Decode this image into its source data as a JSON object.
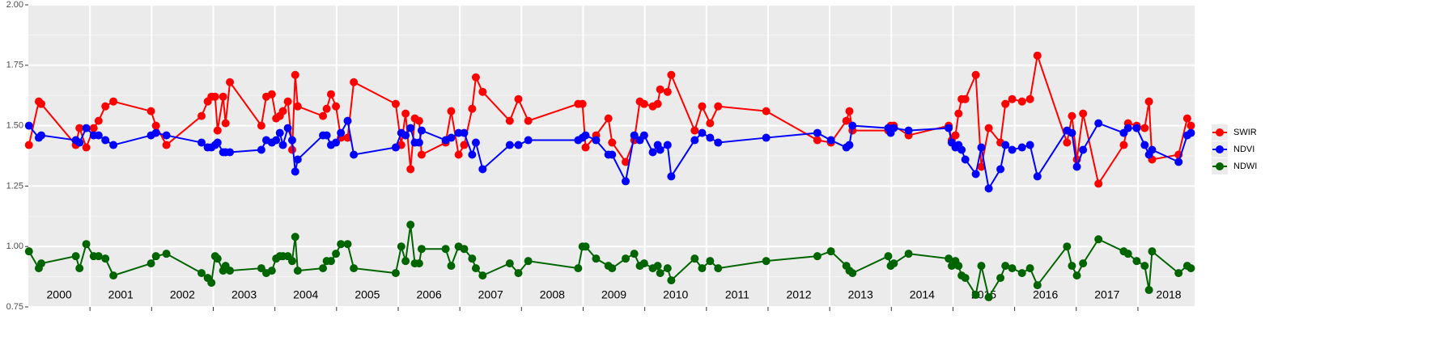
{
  "chart_data": {
    "type": "line",
    "x": [
      2000.01,
      2000.17,
      2000.21,
      2000.77,
      2000.83,
      2000.94,
      2001.06,
      2001.14,
      2001.25,
      2001.38,
      2001.99,
      2002.07,
      2002.24,
      2002.81,
      2002.91,
      2002.97,
      2003.03,
      2003.07,
      2003.16,
      2003.2,
      2003.27,
      2003.78,
      2003.86,
      2003.95,
      2004.02,
      2004.08,
      2004.13,
      2004.21,
      2004.28,
      2004.33,
      2004.37,
      2004.78,
      2004.84,
      2004.91,
      2004.99,
      2005.07,
      2005.18,
      2005.28,
      2005.96,
      2006.05,
      2006.12,
      2006.2,
      2006.27,
      2006.34,
      2006.38,
      2006.77,
      2006.86,
      2006.98,
      2007.07,
      2007.2,
      2007.26,
      2007.37,
      2007.81,
      2007.95,
      2008.11,
      2008.92,
      2008.99,
      2009.04,
      2009.21,
      2009.41,
      2009.47,
      2009.69,
      2009.83,
      2009.92,
      2009.99,
      2010.13,
      2010.21,
      2010.25,
      2010.37,
      2010.43,
      2010.81,
      2010.93,
      2011.06,
      2011.19,
      2011.97,
      2012.8,
      2013.02,
      2013.27,
      2013.32,
      2013.37,
      2013.95,
      2013.99,
      2014.04,
      2014.28,
      2014.93,
      2014.98,
      2015.04,
      2015.09,
      2015.14,
      2015.2,
      2015.37,
      2015.46,
      2015.58,
      2015.77,
      2015.85,
      2015.96,
      2016.12,
      2016.25,
      2016.37,
      2016.85,
      2016.93,
      2017.01,
      2017.11,
      2017.36,
      2017.77,
      2017.84,
      2017.98,
      2018.11,
      2018.18,
      2018.23,
      2018.66,
      2018.8,
      2018.86
    ],
    "series": [
      {
        "name": "SWIR",
        "color": "#ff0000",
        "values": [
          1.42,
          1.6,
          1.59,
          1.42,
          1.49,
          1.41,
          1.49,
          1.52,
          1.58,
          1.6,
          1.56,
          1.5,
          1.42,
          1.54,
          1.6,
          1.62,
          1.62,
          1.48,
          1.62,
          1.51,
          1.68,
          1.5,
          1.62,
          1.63,
          1.53,
          1.54,
          1.56,
          1.6,
          1.4,
          1.71,
          1.58,
          1.54,
          1.57,
          1.63,
          1.58,
          1.45,
          1.45,
          1.68,
          1.59,
          1.42,
          1.55,
          1.32,
          1.53,
          1.52,
          1.38,
          1.43,
          1.56,
          1.38,
          1.42,
          1.57,
          1.7,
          1.64,
          1.52,
          1.61,
          1.52,
          1.59,
          1.59,
          1.41,
          1.46,
          1.53,
          1.43,
          1.35,
          1.44,
          1.6,
          1.59,
          1.58,
          1.59,
          1.65,
          1.64,
          1.71,
          1.48,
          1.58,
          1.51,
          1.58,
          1.56,
          1.44,
          1.43,
          1.52,
          1.56,
          1.48,
          1.48,
          1.5,
          1.5,
          1.46,
          1.5,
          1.44,
          1.46,
          1.55,
          1.61,
          1.61,
          1.71,
          1.33,
          1.49,
          1.43,
          1.59,
          1.61,
          1.6,
          1.61,
          1.79,
          1.43,
          1.54,
          1.36,
          1.55,
          1.26,
          1.42,
          1.51,
          1.5,
          1.49,
          1.6,
          1.36,
          1.38,
          1.53,
          1.5
        ]
      },
      {
        "name": "NDVI",
        "color": "#0000ff",
        "values": [
          1.5,
          1.45,
          1.46,
          1.44,
          1.43,
          1.49,
          1.46,
          1.46,
          1.44,
          1.42,
          1.46,
          1.47,
          1.46,
          1.43,
          1.41,
          1.41,
          1.42,
          1.43,
          1.39,
          1.39,
          1.39,
          1.4,
          1.44,
          1.43,
          1.44,
          1.47,
          1.42,
          1.49,
          1.44,
          1.31,
          1.36,
          1.46,
          1.46,
          1.42,
          1.43,
          1.47,
          1.52,
          1.38,
          1.41,
          1.47,
          1.46,
          1.49,
          1.43,
          1.43,
          1.48,
          1.44,
          1.45,
          1.47,
          1.47,
          1.38,
          1.43,
          1.32,
          1.42,
          1.42,
          1.44,
          1.44,
          1.45,
          1.46,
          1.44,
          1.38,
          1.38,
          1.27,
          1.46,
          1.44,
          1.46,
          1.39,
          1.42,
          1.4,
          1.42,
          1.29,
          1.44,
          1.47,
          1.45,
          1.43,
          1.45,
          1.47,
          1.44,
          1.41,
          1.42,
          1.5,
          1.49,
          1.47,
          1.49,
          1.48,
          1.49,
          1.43,
          1.41,
          1.42,
          1.4,
          1.36,
          1.3,
          1.41,
          1.24,
          1.32,
          1.42,
          1.4,
          1.41,
          1.42,
          1.29,
          1.48,
          1.47,
          1.33,
          1.4,
          1.51,
          1.47,
          1.49,
          1.49,
          1.42,
          1.38,
          1.4,
          1.35,
          1.46,
          1.47
        ]
      },
      {
        "name": "NDWI",
        "color": "#006400",
        "values": [
          0.98,
          0.91,
          0.93,
          0.96,
          0.91,
          1.01,
          0.96,
          0.96,
          0.95,
          0.88,
          0.93,
          0.96,
          0.97,
          0.89,
          0.87,
          0.85,
          0.96,
          0.95,
          0.9,
          0.92,
          0.9,
          0.91,
          0.89,
          0.9,
          0.95,
          0.96,
          0.96,
          0.96,
          0.94,
          1.04,
          0.9,
          0.91,
          0.94,
          0.94,
          0.97,
          1.01,
          1.01,
          0.91,
          0.89,
          1.0,
          0.94,
          1.09,
          0.93,
          0.93,
          0.99,
          0.99,
          0.92,
          1.0,
          0.99,
          0.95,
          0.91,
          0.88,
          0.93,
          0.89,
          0.94,
          0.91,
          1.0,
          1.0,
          0.95,
          0.92,
          0.91,
          0.95,
          0.97,
          0.92,
          0.93,
          0.91,
          0.92,
          0.89,
          0.91,
          0.86,
          0.95,
          0.91,
          0.94,
          0.91,
          0.94,
          0.96,
          0.98,
          0.92,
          0.9,
          0.89,
          0.96,
          0.92,
          0.93,
          0.97,
          0.95,
          0.92,
          0.94,
          0.92,
          0.88,
          0.87,
          0.8,
          0.92,
          0.79,
          0.87,
          0.92,
          0.91,
          0.89,
          0.91,
          0.84,
          1.0,
          0.92,
          0.88,
          0.93,
          1.03,
          0.98,
          0.97,
          0.94,
          0.92,
          0.82,
          0.98,
          0.89,
          0.92,
          0.91
        ]
      }
    ],
    "xlim": [
      2000,
      2018.92
    ],
    "xticks": [
      2001,
      2002,
      2003,
      2004,
      2005,
      2006,
      2007,
      2008,
      2009,
      2010,
      2011,
      2012,
      2013,
      2014,
      2015,
      2016,
      2017,
      2018
    ],
    "year_labels": [
      {
        "text": "2000",
        "x": 2000.5
      },
      {
        "text": "2001",
        "x": 2001.5
      },
      {
        "text": "2002",
        "x": 2002.5
      },
      {
        "text": "2003",
        "x": 2003.5
      },
      {
        "text": "2004",
        "x": 2004.5
      },
      {
        "text": "2005",
        "x": 2005.5
      },
      {
        "text": "2006",
        "x": 2006.5
      },
      {
        "text": "2007",
        "x": 2007.5
      },
      {
        "text": "2008",
        "x": 2008.5
      },
      {
        "text": "2009",
        "x": 2009.5
      },
      {
        "text": "2010",
        "x": 2010.5
      },
      {
        "text": "2011",
        "x": 2011.5
      },
      {
        "text": "2012",
        "x": 2012.5
      },
      {
        "text": "2013",
        "x": 2013.5
      },
      {
        "text": "2014",
        "x": 2014.5
      },
      {
        "text": "2015",
        "x": 2015.5
      },
      {
        "text": "2016",
        "x": 2016.5
      },
      {
        "text": "2017",
        "x": 2017.5
      },
      {
        "text": "2018",
        "x": 2018.5
      }
    ],
    "ylim": [
      0.75,
      2.0
    ],
    "yticks": [
      0.75,
      {
        "value": 1.0,
        "label": "1.00"
      },
      1.25,
      {
        "value": 1.5,
        "label": "1.50"
      },
      1.75,
      {
        "value": 2.0,
        "label": "2.00"
      }
    ],
    "grid": true,
    "legend": "right"
  }
}
